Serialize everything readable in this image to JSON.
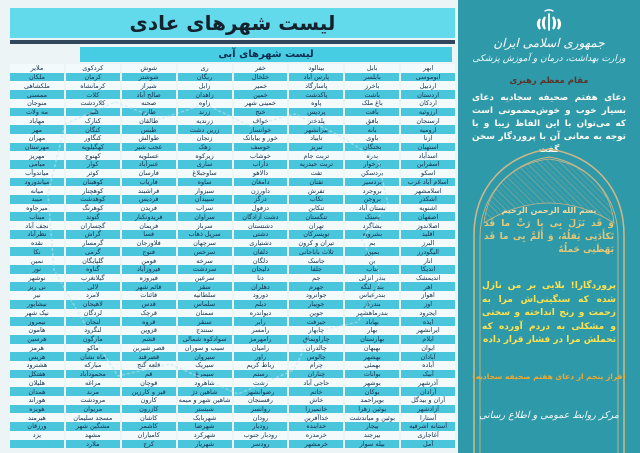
{
  "page_title": "لیست شهرهای عادی",
  "table": {
    "subtitle": "لیست شهرهای آبی",
    "columns": [
      [
        "ابهر",
        "ابوموسی",
        "اردبیل",
        "اردستان",
        "اردکان",
        "ارزوئیه",
        "ارسنجان",
        "ارومیه",
        "ازنا",
        "استهبان",
        "اسدآباد",
        "اسفراین",
        "اسکو",
        "اسلام آباد غرب",
        "اسلامشهر",
        "اشکذر",
        "اشنویه",
        "اصفهان",
        "اصلاندوز",
        "اقلید",
        "البرز",
        "الیگودرز",
        "انار",
        "اندیکا",
        "اندیمشک",
        "اهر",
        "اهواز",
        "اوز",
        "ایجرود",
        "ایذه",
        "ایرانشهر",
        "ایلام",
        "ایوان",
        "آبادان",
        "آباده",
        "آبیک",
        "آذرشهر",
        "آرادان",
        "آران و بیدگل",
        "آزادشهر",
        "آستارا",
        "آستانه اشرفیه",
        "آغاجاری",
        "آمل"
      ],
      [
        "بابل",
        "بابلسر",
        "باخرز",
        "باشت",
        "باغ ملک",
        "بافت",
        "بافق",
        "بانه",
        "باوی",
        "بختگان",
        "بدره",
        "برخوار",
        "بردسکن",
        "بردسیر",
        "بروجرد",
        "بروجن",
        "بستان آباد",
        "بستک",
        "بشاگرد",
        "بشرویه",
        "بم",
        "بمپور",
        "بن",
        "بناب",
        "بندر انزلی",
        "بندر لنگه",
        "بندرعباس",
        "بندرگز",
        "بندرماهشهر",
        "بهاباد",
        "بهار",
        "بهارستان",
        "بهبهان",
        "بهشهر",
        "بهمئی",
        "بوانات",
        "بوشهر",
        "بوکان",
        "بویراحمد",
        "بوئین زهرا",
        "بوئین و میاندشت",
        "بیجار",
        "بیرجند",
        "بیله سوار"
      ],
      [
        "بینالود",
        "پارس آباد",
        "پاسارگاد",
        "پاکدشت",
        "پاوه",
        "پردیس",
        "پلدختر",
        "پیرانشهر",
        "تایباد",
        "تبریز",
        "تربت جام",
        "تربت حیدریه",
        "تفت",
        "تفتان",
        "تفرش",
        "تکاب",
        "تنکابن",
        "تنگستان",
        "تهران",
        "تویسرکان",
        "تیران و کرون",
        "ثلاث باباجانی",
        "جاسک",
        "جلفا",
        "جم",
        "جهرم",
        "جوانرود",
        "جویبار",
        "جوین",
        "جیرفت",
        "چابهار",
        "چاراویماق",
        "چالدران",
        "چالوس",
        "چرام",
        "چناران",
        "حاجی آباد",
        "خاتم",
        "خاش",
        "خانمیرزا",
        "خداآفرین",
        "خدابنده",
        "خرمدره",
        "خرمشهر"
      ],
      [
        "خفر",
        "خلخال",
        "خمیر",
        "خمین",
        "خمینی شهر",
        "خنج",
        "خواف",
        "خوانسار",
        "خور و بیابانک",
        "خوسف",
        "خوشاب",
        "داراب",
        "دالاهو",
        "دامغان",
        "داورزن",
        "درگز",
        "دزفول",
        "دشت آزادگان",
        "دشتستان",
        "دشتی",
        "دشتیاری",
        "دلفان",
        "دلگان",
        "دلیجان",
        "دنا",
        "دهلران",
        "دورود",
        "دیلم",
        "دیواندره",
        "رابر",
        "رامسر",
        "رامهرمز",
        "رامیان",
        "راور",
        "رباط کریم",
        "رستم",
        "رشت",
        "رضوانشهر",
        "رفسنجان",
        "روانسر",
        "رودان",
        "رودبار",
        "رودبار جنوب",
        "رودسر"
      ],
      [
        "ری",
        "ریگان",
        "زابل",
        "زاهدان",
        "زاوه",
        "زرند",
        "زرندیه",
        "زرین دشت",
        "زنجان",
        "زهک",
        "زیرکوه",
        "ساری",
        "ساوجبلاغ",
        "ساوه",
        "سبزوار",
        "سپیدان",
        "سراب",
        "سراوان",
        "سرباز",
        "سرپل ذهاب",
        "سرچهان",
        "سرخس",
        "سرخه",
        "سردشت",
        "سرعین",
        "سقز",
        "سلطانیه",
        "سلماس",
        "سمنان",
        "سنقر",
        "سنندج",
        "سوادکوه شمالی",
        "سیب و سوران",
        "سیروان",
        "سیریک",
        "سیمرغ",
        "شاهرود",
        "شاهین دژ",
        "شاهین شهر و میمه",
        "شبستر",
        "شهربابک",
        "شهرضا",
        "شهرکرد",
        "شهریار"
      ],
      [
        "شوش",
        "شوشتر",
        "شیراز",
        "صالح آباد",
        "صحنه",
        "طارم",
        "طالقان",
        "طبس",
        "طوالش",
        "عجب شیر",
        "عسلویه",
        "عنبرآباد",
        "فارسان",
        "فاریاب",
        "فراشبند",
        "فردیس",
        "فریدن",
        "فریدونکنار",
        "فریمان",
        "فسا",
        "فلاورجان",
        "فنوج",
        "فومن",
        "فیروزآباد",
        "فیروزه",
        "قائم شهر",
        "قائنات",
        "قدس",
        "قرچک",
        "قروه",
        "قزوین",
        "قشم",
        "قصر شیرین",
        "قصرقند",
        "قلعه گنج",
        "قم",
        "قوچان",
        "قیر و کارزین",
        "کارون",
        "کازرون",
        "کاشان",
        "کاشمر",
        "کامیاران",
        "کرج"
      ],
      [
        "کردکوی",
        "کرمان",
        "کرمانشاه",
        "کلات",
        "کلاردشت",
        "کلیبر",
        "کنارک",
        "کنگان",
        "کنگاور",
        "کهگیلویه",
        "کهنوج",
        "کوار",
        "کوثر",
        "کوهبنان",
        "کوهچنار",
        "کوهدشت",
        "کوهرنگ",
        "گتوند",
        "گچساران",
        "گراش",
        "گرمسار",
        "گرمی",
        "گلپایگان",
        "گناوه",
        "گیلانغرب",
        "لالی",
        "لامرد",
        "لاهیجان",
        "لردگان",
        "لنجان",
        "لنگرود",
        "مارگون",
        "ماکو",
        "ماه نشان",
        "مبارکه",
        "محمودآباد",
        "مراغه",
        "مرند",
        "مرودشت",
        "مریوان",
        "مسجد سلیمان",
        "مشگین شهر",
        "مشهد",
        "ملارد"
      ],
      [
        "ملایر",
        "ملکان",
        "ملکشاهی",
        "ممسنی",
        "منوجان",
        "مه ولات",
        "مهاباد",
        "مهر",
        "مهران",
        "مهرستان",
        "مهریز",
        "میامی",
        "میاندوآب",
        "میاندورود",
        "میانه",
        "میبد",
        "میرجاوه",
        "میناب",
        "نجف آباد",
        "نظرآباد",
        "نقده",
        "نکا",
        "نمین",
        "نور",
        "نوشهر",
        "نی ریز",
        "نیر",
        "نیشابور",
        "نیک شهر",
        "نیمروز",
        "هامون",
        "هرسین",
        "هرمز",
        "هریس",
        "هشترود",
        "هفتکل",
        "هلیلان",
        "همدان",
        "هوراند",
        "هویزه",
        "هیرمند",
        "ورزقان",
        "یزد",
        ""
      ]
    ]
  },
  "panel": {
    "org_line1": "جمهوری اسلامی ایران",
    "org_line2": "وزارت بهداشت، درمان و آموزش پزشکی",
    "speaker": "مقام معظم رهبری",
    "quote": "دعای هفتم صحیفه سجادیه دعای بسیار خوب و خوش‌مضمونی است که می‌توان با این الفاظ زیبا و با توجه به معانی آن با پروردگار سخن گفت",
    "basmala": "بسم الله الرحمن الرحیم",
    "verse": "وَ قَد نَزَلَ بِی یا رَبِّ ما قَد تَکأَدَنِی ثِقلُهُ، وَ أَلَمَّ بِی ما قَد بَهَظَنِی حَملُهُ",
    "translation": "پروردگارا! بلایی بر من نازل شده که سنگینی‌اش مرا به زحمت و رنج انداخته و سختی و مشکلی به دردم آورده که تحملش مرا در فشار قرار داده",
    "caption": "(فراز پنجم از دعای هفتم صحیفه سجادیه)",
    "footer": "مرکز روابط عمومی و اطلاع رسانی"
  },
  "colors": {
    "sheet_bg": "#edf4f5",
    "title_band": "#63daec",
    "subtitle_band": "#46cde3",
    "row_light": "#f2fafc",
    "row_cyan": "#4ac6dc",
    "cell_text": "#16324f",
    "panel_bg": "#2e99a8",
    "gold": "#e5c878",
    "yellow": "#ffe14d",
    "orange": "#f0a830"
  }
}
